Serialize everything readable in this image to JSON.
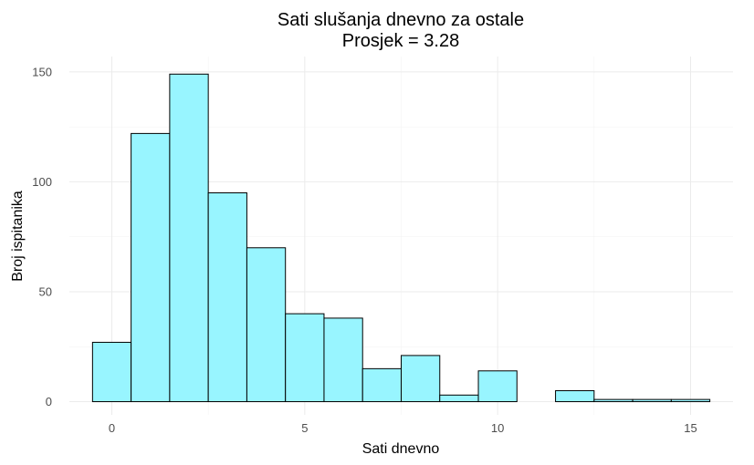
{
  "chart_data": {
    "type": "bar",
    "title": "Sati slušanja dnevno za ostale",
    "subtitle": "Prosjek = 3.28",
    "xlabel": "Sati dnevno",
    "ylabel": "Broj ispitanika",
    "bin_width": 1,
    "bin_centers": [
      0,
      1,
      2,
      3,
      4,
      5,
      6,
      7,
      8,
      9,
      10,
      11,
      12,
      13,
      14,
      15
    ],
    "values": [
      27,
      122,
      149,
      95,
      70,
      40,
      38,
      15,
      21,
      3,
      14,
      0,
      5,
      1,
      1,
      1
    ],
    "xlim": [
      -1.1,
      16.1
    ],
    "ylim": [
      -6,
      157
    ],
    "x_ticks": [
      0,
      5,
      10,
      15
    ],
    "x_tick_labels": [
      "0",
      "5",
      "10",
      "15"
    ],
    "y_ticks": [
      0,
      50,
      100,
      150
    ],
    "y_tick_labels": [
      "0",
      "50",
      "100",
      "150"
    ],
    "grid": true,
    "legend": "none",
    "bar_color": "#98F5FF",
    "bar_outline": "#000000"
  }
}
